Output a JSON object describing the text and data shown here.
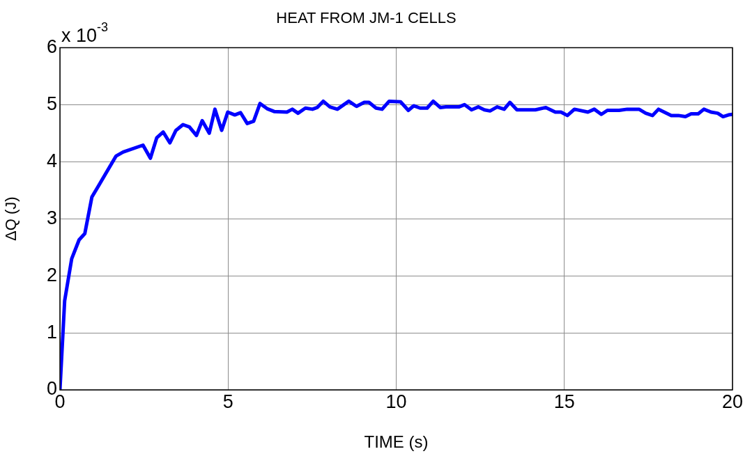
{
  "chart_data": {
    "type": "line",
    "title": "HEAT FROM JM-1 CELLS",
    "xlabel": "TIME (s)",
    "ylabel": "ΔQ (J)",
    "annotations": [
      "x 10$^{-3}$"
    ],
    "x": [
      0,
      0.14,
      0.35,
      0.57,
      0.74,
      0.95,
      1.15,
      1.67,
      1.88,
      2.47,
      2.69,
      2.88,
      3.07,
      3.27,
      3.45,
      3.66,
      3.85,
      4.06,
      4.23,
      4.44,
      4.61,
      4.81,
      4.99,
      5.2,
      5.37,
      5.57,
      5.76,
      5.95,
      6.16,
      6.37,
      6.75,
      6.91,
      7.08,
      7.3,
      7.51,
      7.65,
      7.83,
      8.03,
      8.25,
      8.59,
      8.82,
      9.05,
      9.19,
      9.4,
      9.58,
      9.79,
      10.13,
      10.36,
      10.52,
      10.71,
      10.92,
      11.1,
      11.31,
      11.48,
      11.86,
      12.03,
      12.24,
      12.44,
      12.62,
      12.79,
      13,
      13.21,
      13.38,
      13.59,
      14.14,
      14.45,
      14.73,
      14.9,
      15.09,
      15.3,
      15.7,
      15.89,
      16.1,
      16.28,
      16.63,
      16.87,
      17.22,
      17.42,
      17.62,
      17.8,
      18.18,
      18.39,
      18.6,
      18.77,
      18.98,
      19.15,
      19.36,
      19.56,
      19.72,
      19.88,
      20
    ],
    "series": [
      {
        "color": "#0000ff",
        "values": [
          0,
          1.56,
          2.3,
          2.63,
          2.74,
          3.38,
          3.58,
          4.1,
          4.17,
          4.29,
          4.06,
          4.42,
          4.52,
          4.33,
          4.55,
          4.65,
          4.61,
          4.46,
          4.72,
          4.5,
          4.92,
          4.55,
          4.87,
          4.82,
          4.86,
          4.67,
          4.71,
          5.02,
          4.93,
          4.88,
          4.87,
          4.92,
          4.85,
          4.94,
          4.92,
          4.95,
          5.06,
          4.96,
          4.92,
          5.06,
          4.97,
          5.04,
          5.04,
          4.94,
          4.92,
          5.06,
          5.05,
          4.9,
          4.98,
          4.94,
          4.94,
          5.06,
          4.95,
          4.96,
          4.96,
          5,
          4.91,
          4.96,
          4.91,
          4.89,
          4.96,
          4.92,
          5.04,
          4.91,
          4.91,
          4.95,
          4.87,
          4.87,
          4.81,
          4.92,
          4.87,
          4.92,
          4.83,
          4.9,
          4.9,
          4.92,
          4.92,
          4.85,
          4.81,
          4.92,
          4.81,
          4.81,
          4.79,
          4.84,
          4.84,
          4.92,
          4.87,
          4.85,
          4.79,
          4.82,
          4.83
        ]
      }
    ],
    "xlim": [
      0,
      20
    ],
    "xticks": [
      0,
      5,
      10,
      15,
      20
    ],
    "ylim": [
      0,
      6
    ],
    "yticks": [
      0,
      1,
      2,
      3,
      4,
      5,
      6
    ],
    "grid": true,
    "legend": false,
    "marker": "none",
    "line_style": "solid"
  }
}
